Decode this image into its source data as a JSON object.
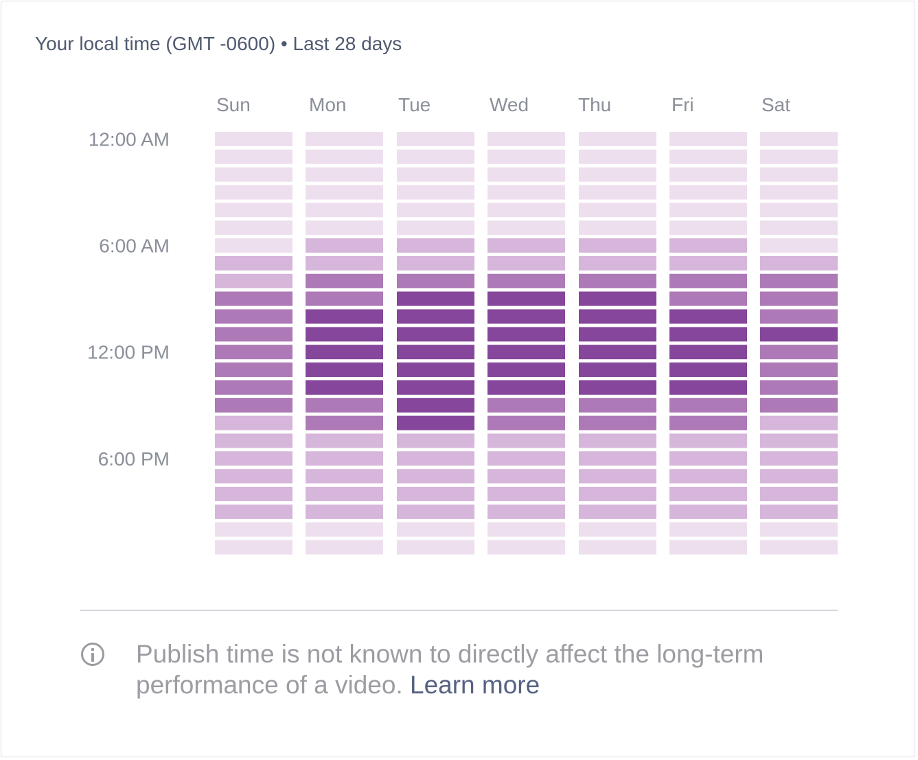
{
  "header": {
    "subtitle": "Your local time (GMT -0600) • Last 28 days"
  },
  "colors": {
    "level_0": "#eedfef",
    "level_1": "#d6b6da",
    "level_2": "#ad79b7",
    "level_3": "#85469b",
    "text_muted": "#8a8f99",
    "link": "#566282"
  },
  "chart_data": {
    "type": "heatmap",
    "title": "",
    "x": [
      "Sun",
      "Mon",
      "Tue",
      "Wed",
      "Thu",
      "Fri",
      "Sat"
    ],
    "y_tick_labels": [
      "12:00  AM",
      "6:00  AM",
      "12:00 PM",
      "6:00  PM"
    ],
    "y_tick_rows": [
      0,
      6,
      12,
      18
    ],
    "rows_per_day": 24,
    "scale": "relative intensity level 0 (lowest) to 3 (highest)",
    "values": [
      [
        0,
        0,
        0,
        0,
        0,
        0,
        0
      ],
      [
        0,
        0,
        0,
        0,
        0,
        0,
        0
      ],
      [
        0,
        0,
        0,
        0,
        0,
        0,
        0
      ],
      [
        0,
        0,
        0,
        0,
        0,
        0,
        0
      ],
      [
        0,
        0,
        0,
        0,
        0,
        0,
        0
      ],
      [
        0,
        0,
        0,
        0,
        0,
        0,
        0
      ],
      [
        0,
        1,
        1,
        1,
        1,
        1,
        0
      ],
      [
        1,
        1,
        1,
        1,
        1,
        1,
        1
      ],
      [
        1,
        2,
        2,
        2,
        2,
        2,
        2
      ],
      [
        2,
        2,
        3,
        3,
        3,
        2,
        2
      ],
      [
        2,
        3,
        3,
        3,
        3,
        3,
        2
      ],
      [
        2,
        3,
        3,
        3,
        3,
        3,
        3
      ],
      [
        2,
        3,
        3,
        3,
        3,
        3,
        2
      ],
      [
        2,
        3,
        3,
        3,
        3,
        3,
        2
      ],
      [
        2,
        3,
        3,
        3,
        3,
        3,
        2
      ],
      [
        2,
        2,
        3,
        2,
        2,
        2,
        2
      ],
      [
        1,
        2,
        3,
        2,
        2,
        2,
        1
      ],
      [
        1,
        1,
        1,
        1,
        1,
        1,
        1
      ],
      [
        1,
        1,
        1,
        1,
        1,
        1,
        1
      ],
      [
        1,
        1,
        1,
        1,
        1,
        1,
        1
      ],
      [
        1,
        1,
        1,
        1,
        1,
        1,
        1
      ],
      [
        1,
        1,
        1,
        1,
        1,
        1,
        1
      ],
      [
        0,
        0,
        0,
        0,
        0,
        0,
        0
      ],
      [
        0,
        0,
        0,
        0,
        0,
        0,
        0
      ]
    ]
  },
  "footer": {
    "info_icon": "info-icon",
    "note": "Publish time is not known to directly affect the long-term performance of a video.",
    "link_label": "Learn more"
  }
}
